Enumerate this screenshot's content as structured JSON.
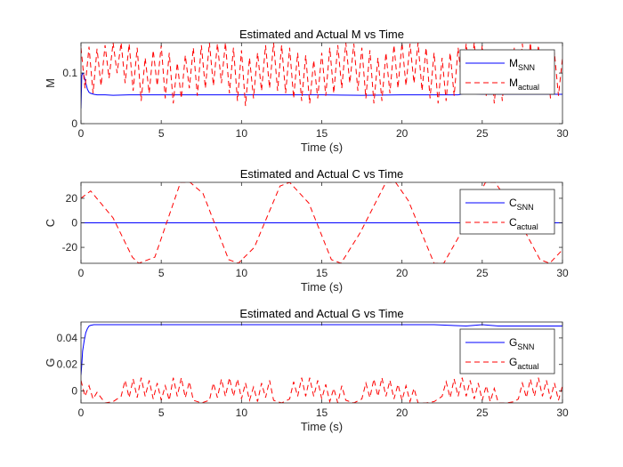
{
  "figure": {
    "background": "#ffffff"
  },
  "chart_data": [
    {
      "type": "line",
      "title": "Estimated and Actual M vs Time",
      "xlabel": "Time (s)",
      "ylabel": "M",
      "xlim": [
        0,
        30
      ],
      "ylim": [
        0,
        0.16
      ],
      "xticks": [
        0,
        5,
        10,
        15,
        20,
        25,
        30
      ],
      "xtick_labels": [
        "0",
        "5",
        "10",
        "15",
        "20",
        "25",
        "30"
      ],
      "yticks": [
        0,
        0.1
      ],
      "ytick_labels": [
        "0",
        "0.1"
      ],
      "legend_position": "top-right",
      "series": [
        {
          "name": "SNN",
          "legend_main": "M",
          "legend_sub": "SNN",
          "color": "#0000ff",
          "style": "solid",
          "x": [
            0,
            0.05,
            0.1,
            0.15,
            0.2,
            0.3,
            0.4,
            0.5,
            0.6,
            0.8,
            1.0,
            1.5,
            2,
            3,
            5,
            7,
            10,
            12.5,
            15,
            17.5,
            20,
            22.5,
            23.5,
            24,
            25,
            27.5,
            30
          ],
          "y": [
            0.03,
            0.095,
            0.1,
            0.099,
            0.093,
            0.08,
            0.068,
            0.062,
            0.06,
            0.058,
            0.057,
            0.057,
            0.056,
            0.057,
            0.057,
            0.057,
            0.057,
            0.057,
            0.057,
            0.056,
            0.057,
            0.057,
            0.057,
            0.06,
            0.058,
            0.058,
            0.058
          ]
        },
        {
          "name": "actual",
          "legend_main": "M",
          "legend_sub": "actual",
          "color": "#ff0000",
          "style": "dashed",
          "x": [
            0,
            0.25,
            0.5,
            0.75,
            1,
            1.25,
            1.5,
            1.75,
            2,
            2.25,
            2.5,
            2.75,
            3,
            3.25,
            3.5,
            3.75,
            4,
            4.25,
            4.5,
            4.75,
            5,
            5.25,
            5.5,
            5.75,
            6,
            6.25,
            6.5,
            6.75,
            7,
            7.25,
            7.5,
            7.75,
            8,
            8.25,
            8.5,
            8.75,
            9,
            9.25,
            9.5,
            9.75,
            10,
            10.25,
            10.5,
            10.75,
            11,
            11.25,
            11.5,
            11.75,
            12,
            12.25,
            12.5,
            12.75,
            13,
            13.25,
            13.5,
            13.75,
            14,
            14.25,
            14.5,
            14.75,
            15,
            15.25,
            15.5,
            15.75,
            16,
            16.25,
            16.5,
            16.75,
            17,
            17.25,
            17.5,
            17.75,
            18,
            18.25,
            18.5,
            18.75,
            19,
            19.25,
            19.5,
            19.75,
            20,
            20.25,
            20.5,
            20.75,
            21,
            21.25,
            21.5,
            21.75,
            22,
            22.25,
            22.5,
            22.75,
            23,
            23.25,
            23.5,
            23.75,
            24,
            24.25,
            24.5,
            24.75,
            25,
            25.25,
            25.5,
            25.75,
            26,
            26.25,
            26.5,
            26.75,
            27,
            27.25,
            27.5,
            27.75,
            28,
            28.25,
            28.5,
            28.75,
            29,
            29.25,
            29.5,
            29.75,
            30
          ],
          "y": [
            0.15,
            0.07,
            0.152,
            0.06,
            0.148,
            0.075,
            0.155,
            0.09,
            0.16,
            0.1,
            0.16,
            0.08,
            0.158,
            0.065,
            0.15,
            0.045,
            0.13,
            0.06,
            0.145,
            0.075,
            0.155,
            0.05,
            0.14,
            0.04,
            0.12,
            0.05,
            0.135,
            0.07,
            0.15,
            0.055,
            0.155,
            0.07,
            0.16,
            0.075,
            0.158,
            0.08,
            0.16,
            0.06,
            0.15,
            0.045,
            0.145,
            0.035,
            0.13,
            0.05,
            0.14,
            0.065,
            0.155,
            0.07,
            0.16,
            0.065,
            0.155,
            0.06,
            0.15,
            0.05,
            0.14,
            0.045,
            0.135,
            0.04,
            0.125,
            0.05,
            0.14,
            0.055,
            0.15,
            0.06,
            0.155,
            0.07,
            0.16,
            0.08,
            0.158,
            0.065,
            0.15,
            0.05,
            0.145,
            0.04,
            0.13,
            0.045,
            0.14,
            0.06,
            0.155,
            0.07,
            0.16,
            0.075,
            0.158,
            0.08,
            0.16,
            0.065,
            0.15,
            0.05,
            0.14,
            0.04,
            0.13,
            0.045,
            0.14,
            0.055,
            0.15,
            0.07,
            0.158,
            0.08,
            0.16,
            0.07,
            0.155,
            0.055,
            0.145,
            0.04,
            0.13,
            0.045,
            0.14,
            0.06,
            0.15,
            0.07,
            0.158,
            0.075,
            0.16,
            0.07,
            0.155,
            0.06,
            0.145,
            0.05,
            0.14,
            0.055,
            0.13
          ]
        }
      ]
    },
    {
      "type": "line",
      "title": "Estimated and Actual C vs Time",
      "xlabel": "Time (s)",
      "ylabel": "C",
      "xlim": [
        0,
        30
      ],
      "ylim": [
        -33,
        33
      ],
      "xticks": [
        0,
        5,
        10,
        15,
        20,
        25,
        30
      ],
      "xtick_labels": [
        "0",
        "5",
        "10",
        "15",
        "20",
        "25",
        "30"
      ],
      "yticks": [
        -20,
        0,
        20
      ],
      "ytick_labels": [
        "-20",
        "0",
        "20"
      ],
      "legend_position": "top-right",
      "series": [
        {
          "name": "SNN",
          "legend_main": "C",
          "legend_sub": "SNN",
          "color": "#0000ff",
          "style": "solid",
          "x": [
            0,
            30
          ],
          "y": [
            0,
            0
          ]
        },
        {
          "name": "actual",
          "legend_main": "C",
          "legend_sub": "actual",
          "color": "#ff0000",
          "style": "dashed",
          "x": [
            0,
            0.6,
            2,
            3.2,
            3.6,
            4.6,
            6.2,
            6.8,
            7.6,
            9.2,
            9.8,
            10.8,
            12.4,
            13.0,
            14.2,
            15.6,
            16.2,
            17.4,
            19.0,
            19.6,
            20.4,
            22.0,
            22.6,
            23.6,
            25.2,
            25.8,
            26.8,
            28.6,
            29.2,
            30
          ],
          "y": [
            20,
            26,
            4,
            -28,
            -33,
            -28,
            33,
            33,
            24,
            -30,
            -33,
            -20,
            30,
            33,
            16,
            -30,
            -33,
            -8,
            33,
            33,
            18,
            -33,
            -33,
            -10,
            33,
            33,
            14,
            -30,
            -33,
            -22
          ]
        }
      ]
    },
    {
      "type": "line",
      "title": "Estimated and Actual G vs Time",
      "xlabel": "Time (s)",
      "ylabel": "G",
      "xlim": [
        0,
        30
      ],
      "ylim": [
        -0.009,
        0.052
      ],
      "xticks": [
        0,
        5,
        10,
        15,
        20,
        25,
        30
      ],
      "xtick_labels": [
        "0",
        "5",
        "10",
        "15",
        "20",
        "25",
        "30"
      ],
      "yticks": [
        0,
        0.02,
        0.04
      ],
      "ytick_labels": [
        "0",
        "0.02",
        "0.04"
      ],
      "legend_position": "top-right",
      "series": [
        {
          "name": "SNN",
          "legend_main": "G",
          "legend_sub": "SNN",
          "color": "#0000ff",
          "style": "solid",
          "x": [
            0,
            0.05,
            0.1,
            0.2,
            0.3,
            0.4,
            0.5,
            0.6,
            0.8,
            1.0,
            2,
            4,
            6,
            8,
            10,
            12,
            14,
            16,
            18,
            20,
            22,
            24,
            25,
            26,
            28,
            30
          ],
          "y": [
            0.012,
            0.02,
            0.03,
            0.038,
            0.044,
            0.047,
            0.049,
            0.0495,
            0.05,
            0.05,
            0.05,
            0.05,
            0.05,
            0.05,
            0.05,
            0.05,
            0.05,
            0.05,
            0.05,
            0.05,
            0.05,
            0.049,
            0.05,
            0.049,
            0.049,
            0.049
          ]
        },
        {
          "name": "actual",
          "legend_main": "G",
          "legend_sub": "actual",
          "color": "#ff0000",
          "style": "dashed",
          "x": [
            0,
            0.25,
            0.5,
            0.75,
            1,
            1.5,
            2,
            2.5,
            2.75,
            3,
            3.25,
            3.5,
            3.75,
            4,
            4.25,
            4.5,
            4.75,
            5,
            5.25,
            5.5,
            5.75,
            6,
            6.25,
            6.5,
            6.75,
            7,
            7.5,
            8,
            8.25,
            8.5,
            8.75,
            9,
            9.25,
            9.5,
            9.75,
            10,
            10.25,
            10.5,
            10.75,
            11,
            11.25,
            11.5,
            11.75,
            12,
            12.5,
            13,
            13.25,
            13.5,
            13.75,
            14,
            14.25,
            14.5,
            14.75,
            15,
            15.25,
            15.5,
            15.75,
            16,
            16.25,
            16.5,
            17,
            17.5,
            17.75,
            18,
            18.25,
            18.5,
            18.75,
            19,
            19.25,
            19.5,
            19.75,
            20,
            20.25,
            20.5,
            20.75,
            21,
            21.5,
            22,
            22.5,
            22.75,
            23,
            23.25,
            23.5,
            23.75,
            24,
            24.25,
            24.5,
            24.75,
            25,
            25.25,
            25.5,
            25.75,
            26,
            26.5,
            27,
            27.25,
            27.5,
            27.75,
            28,
            28.25,
            28.5,
            28.75,
            29,
            29.25,
            29.5,
            29.75,
            30
          ],
          "y": [
            0.008,
            -0.004,
            0.004,
            -0.006,
            -0.001,
            -0.009,
            -0.008,
            -0.004,
            0.008,
            -0.005,
            0.009,
            -0.005,
            0.01,
            -0.004,
            0.008,
            -0.006,
            0.006,
            -0.007,
            0.004,
            -0.007,
            0.01,
            -0.004,
            0.01,
            -0.005,
            0.007,
            -0.007,
            -0.009,
            -0.007,
            0.006,
            -0.005,
            0.009,
            -0.004,
            0.01,
            -0.004,
            0.009,
            -0.006,
            0.006,
            -0.007,
            0.003,
            -0.008,
            0.006,
            -0.005,
            0.008,
            -0.007,
            -0.009,
            -0.006,
            0.007,
            -0.004,
            0.01,
            -0.004,
            0.01,
            -0.004,
            0.008,
            -0.006,
            0.005,
            -0.008,
            0.002,
            -0.009,
            0.004,
            -0.007,
            -0.009,
            -0.006,
            0.006,
            -0.005,
            0.009,
            -0.004,
            0.01,
            -0.004,
            0.008,
            -0.006,
            0.005,
            -0.007,
            0.004,
            -0.008,
            0.002,
            -0.009,
            -0.009,
            -0.008,
            -0.004,
            0.007,
            -0.005,
            0.009,
            -0.004,
            0.01,
            -0.004,
            0.008,
            -0.006,
            0.006,
            -0.007,
            0.004,
            -0.008,
            0.002,
            -0.009,
            -0.009,
            -0.008,
            -0.006,
            0.006,
            -0.005,
            0.009,
            -0.004,
            0.01,
            -0.004,
            0.008,
            -0.006,
            0.006,
            -0.007,
            0.004
          ]
        }
      ]
    }
  ]
}
